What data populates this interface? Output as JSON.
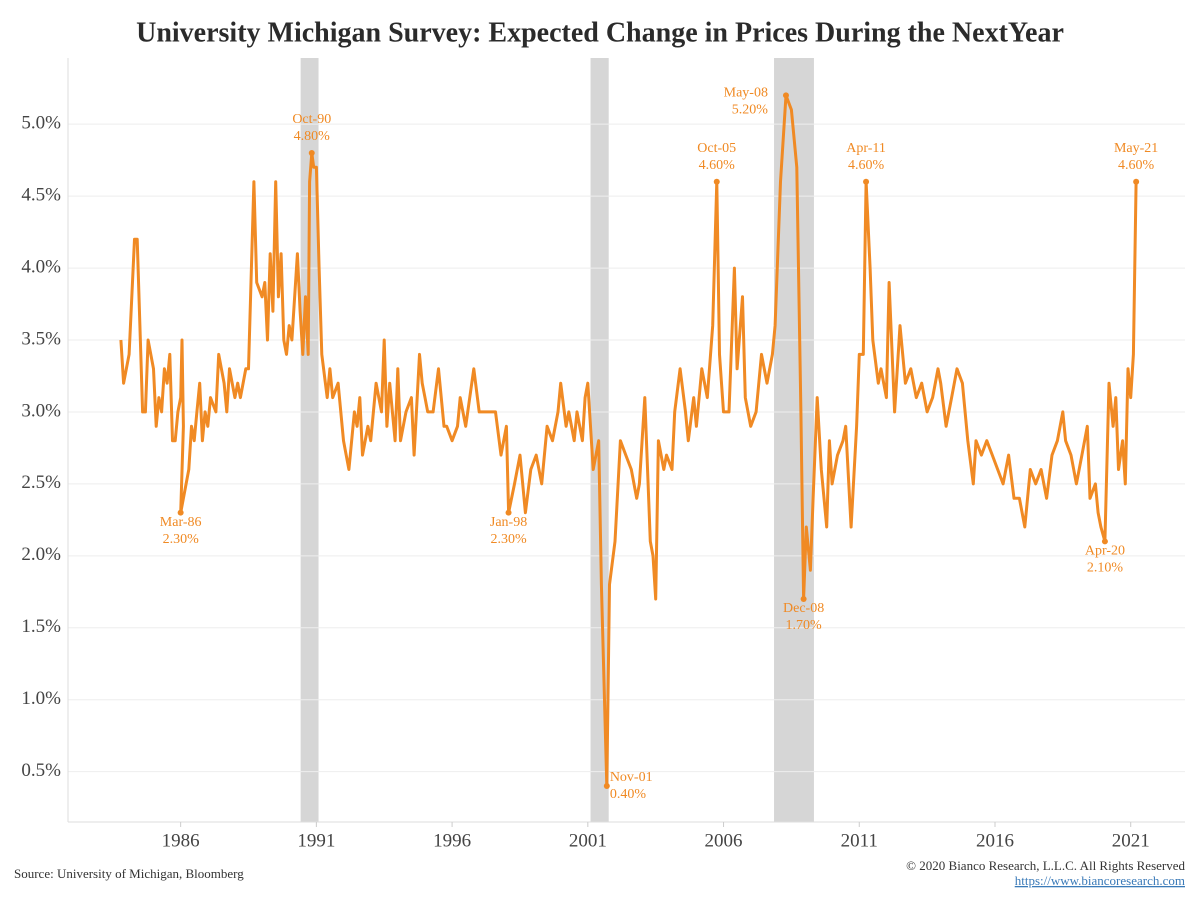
{
  "chart_data": {
    "type": "line",
    "title": "University Michigan Survey: Expected Change in Prices During the NextYear",
    "source": "Source: University of Michigan, Bloomberg",
    "copyright": "© 2020 Bianco Research, L.L.C. All Rights Reserved",
    "url": "https://www.biancoresearch.com",
    "color": "#f08a24",
    "shade_color": "#d6d6d6",
    "grid": true,
    "xlim": [
      1981.85,
      2023
    ],
    "xticks": [
      1986,
      1991,
      1996,
      2001,
      2006,
      2011,
      2016,
      2021
    ],
    "ylim": [
      0.15,
      5.46
    ],
    "yticks": [
      {
        "value": 0.5,
        "label": "0.5%"
      },
      {
        "value": 1,
        "label": "1.0%"
      },
      {
        "value": 1.5,
        "label": "1.5%"
      },
      {
        "value": 2,
        "label": "2.0%"
      },
      {
        "value": 2.5,
        "label": "2.5%"
      },
      {
        "value": 3,
        "label": "3.0%"
      },
      {
        "value": 3.5,
        "label": "3.5%"
      },
      {
        "value": 4,
        "label": "4.0%"
      },
      {
        "value": 4.5,
        "label": "4.5%"
      },
      {
        "value": 5,
        "label": "5.0%"
      }
    ],
    "shaded_periods": [
      [
        1990.42,
        1991.08
      ],
      [
        2001.1,
        2001.77
      ],
      [
        2007.86,
        2009.33
      ]
    ],
    "x": [
      1983.8,
      1983.9,
      1984.1,
      1984.3,
      1984.4,
      1984.6,
      1984.7,
      1984.8,
      1985.0,
      1985.1,
      1985.2,
      1985.3,
      1985.4,
      1985.5,
      1985.6,
      1985.7,
      1985.8,
      1985.9,
      1986.0,
      1986.05,
      1986.1,
      1986.0,
      1986.3,
      1986.4,
      1986.5,
      1986.6,
      1986.7,
      1986.8,
      1986.9,
      1987.0,
      1987.1,
      1987.3,
      1987.4,
      1987.6,
      1987.7,
      1987.8,
      1988.0,
      1988.1,
      1988.2,
      1988.4,
      1988.5,
      1988.7,
      1988.8,
      1989.0,
      1989.1,
      1989.2,
      1989.3,
      1989.4,
      1989.5,
      1989.6,
      1989.7,
      1989.8,
      1989.9,
      1990.0,
      1990.1,
      1990.3,
      1990.4,
      1990.5,
      1990.6,
      1990.7,
      1990.75,
      1990.83,
      1990.9,
      1991.0,
      1991.1,
      1991.2,
      1991.4,
      1991.5,
      1991.6,
      1991.8,
      1992.0,
      1992.1,
      1992.2,
      1992.4,
      1992.5,
      1992.6,
      1992.7,
      1992.9,
      1993.0,
      1993.2,
      1993.4,
      1993.5,
      1993.6,
      1993.7,
      1993.9,
      1994.0,
      1994.1,
      1994.3,
      1994.5,
      1994.6,
      1994.8,
      1994.9,
      1995.0,
      1995.1,
      1995.3,
      1995.5,
      1995.7,
      1995.8,
      1996.0,
      1996.2,
      1996.3,
      1996.5,
      1996.8,
      1997.0,
      1997.3,
      1997.6,
      1997.8,
      1998.0,
      1998.08,
      1998.3,
      1998.5,
      1998.7,
      1998.9,
      1999.1,
      1999.3,
      1999.5,
      1999.7,
      1999.9,
      2000.0,
      2000.2,
      2000.3,
      2000.5,
      2000.6,
      2000.8,
      2000.9,
      2001.0,
      2001.2,
      2001.4,
      2001.5,
      2001.7,
      2001.8,
      2002.0,
      2002.2,
      2002.4,
      2002.6,
      2002.8,
      2002.9,
      2003.1,
      2003.3,
      2003.4,
      2003.5,
      2003.6,
      2003.8,
      2003.9,
      2004.1,
      2004.2,
      2004.4,
      2004.6,
      2004.7,
      2004.9,
      2005.0,
      2005.2,
      2005.4,
      2005.6,
      2005.75,
      2005.85,
      2006.0,
      2006.2,
      2006.4,
      2006.5,
      2006.7,
      2006.8,
      2007.0,
      2007.2,
      2007.4,
      2007.6,
      2007.8,
      2007.9,
      2008.1,
      2008.3,
      2008.5,
      2008.7,
      2008.85,
      2008.95,
      2009.05,
      2009.2,
      2009.3,
      2009.45,
      2009.6,
      2009.8,
      2009.9,
      2010.0,
      2010.2,
      2010.4,
      2010.5,
      2010.7,
      2010.9,
      2011.0,
      2011.15,
      2011.25,
      2011.4,
      2011.5,
      2011.7,
      2011.8,
      2012.0,
      2012.1,
      2012.3,
      2012.5,
      2012.7,
      2012.9,
      2013.1,
      2013.3,
      2013.5,
      2013.7,
      2013.9,
      2014.0,
      2014.2,
      2014.4,
      2014.6,
      2014.8,
      2015.0,
      2015.2,
      2015.3,
      2015.5,
      2015.7,
      2015.9,
      2016.1,
      2016.3,
      2016.5,
      2016.7,
      2016.9,
      2017.1,
      2017.3,
      2017.5,
      2017.7,
      2017.9,
      2018.1,
      2018.3,
      2018.5,
      2018.6,
      2018.8,
      2019.0,
      2019.2,
      2019.4,
      2019.5,
      2019.7,
      2019.8,
      2019.9,
      2020.05,
      2020.2,
      2020.35,
      2020.45,
      2020.55,
      2020.7,
      2020.8,
      2020.9,
      2021.0,
      2021.1,
      2021.2
    ],
    "values": [
      3.5,
      3.2,
      3.4,
      4.2,
      4.2,
      3.0,
      3.0,
      3.5,
      3.3,
      2.9,
      3.1,
      3.0,
      3.3,
      3.2,
      3.4,
      2.8,
      2.8,
      3.0,
      3.1,
      3.5,
      2.9,
      2.3,
      2.6,
      2.9,
      2.8,
      3.0,
      3.2,
      2.8,
      3.0,
      2.9,
      3.1,
      3.0,
      3.4,
      3.2,
      3.0,
      3.3,
      3.1,
      3.2,
      3.1,
      3.3,
      3.3,
      4.6,
      3.9,
      3.8,
      3.9,
      3.5,
      4.1,
      3.7,
      4.6,
      3.8,
      4.1,
      3.5,
      3.4,
      3.6,
      3.5,
      4.1,
      3.7,
      3.4,
      3.8,
      3.4,
      4.6,
      4.8,
      4.7,
      4.7,
      4.0,
      3.4,
      3.1,
      3.3,
      3.1,
      3.2,
      2.8,
      2.7,
      2.6,
      3.0,
      2.9,
      3.1,
      2.7,
      2.9,
      2.8,
      3.2,
      3.0,
      3.5,
      2.9,
      3.2,
      2.8,
      3.3,
      2.8,
      3.0,
      3.1,
      2.7,
      3.4,
      3.2,
      3.1,
      3.0,
      3.0,
      3.3,
      2.9,
      2.9,
      2.8,
      2.9,
      3.1,
      2.9,
      3.3,
      3.0,
      3.0,
      3.0,
      2.7,
      2.9,
      2.3,
      2.5,
      2.7,
      2.3,
      2.6,
      2.7,
      2.5,
      2.9,
      2.8,
      3.0,
      3.2,
      2.9,
      3.0,
      2.8,
      3.0,
      2.8,
      3.1,
      3.2,
      2.6,
      2.8,
      1.8,
      0.4,
      1.8,
      2.1,
      2.8,
      2.7,
      2.6,
      2.4,
      2.5,
      3.1,
      2.1,
      2.0,
      1.7,
      2.8,
      2.6,
      2.7,
      2.6,
      3.0,
      3.3,
      3.0,
      2.8,
      3.1,
      2.9,
      3.3,
      3.1,
      3.6,
      4.6,
      3.4,
      3.0,
      3.0,
      4.0,
      3.3,
      3.8,
      3.1,
      2.9,
      3.0,
      3.4,
      3.2,
      3.4,
      3.6,
      4.6,
      5.2,
      5.1,
      4.7,
      3.0,
      1.7,
      2.2,
      1.9,
      2.4,
      3.1,
      2.6,
      2.2,
      2.8,
      2.5,
      2.7,
      2.8,
      2.9,
      2.2,
      2.9,
      3.4,
      3.4,
      4.6,
      4.0,
      3.5,
      3.2,
      3.3,
      3.1,
      3.9,
      3.0,
      3.6,
      3.2,
      3.3,
      3.1,
      3.2,
      3.0,
      3.1,
      3.3,
      3.2,
      2.9,
      3.1,
      3.3,
      3.2,
      2.8,
      2.5,
      2.8,
      2.7,
      2.8,
      2.7,
      2.6,
      2.5,
      2.7,
      2.4,
      2.4,
      2.2,
      2.6,
      2.5,
      2.6,
      2.4,
      2.7,
      2.8,
      3.0,
      2.8,
      2.7,
      2.5,
      2.7,
      2.9,
      2.4,
      2.5,
      2.3,
      2.2,
      2.1,
      3.2,
      2.9,
      3.1,
      2.6,
      2.8,
      2.5,
      3.3,
      3.1,
      3.4,
      4.6
    ],
    "annotations": [
      {
        "label": "Mar-86",
        "value_label": "2.30%",
        "x": 1986.0,
        "y": 2.3,
        "position": "below"
      },
      {
        "label": "Oct-90",
        "value_label": "4.80%",
        "x": 1990.83,
        "y": 4.8,
        "position": "above"
      },
      {
        "label": "Jan-98",
        "value_label": "2.30%",
        "x": 1998.08,
        "y": 2.3,
        "position": "below"
      },
      {
        "label": "Nov-01",
        "value_label": "0.40%",
        "x": 2001.7,
        "y": 0.4,
        "position": "right"
      },
      {
        "label": "Oct-05",
        "value_label": "4.60%",
        "x": 2005.75,
        "y": 4.6,
        "position": "above"
      },
      {
        "label": "May-08",
        "value_label": "5.20%",
        "x": 2008.3,
        "y": 5.2,
        "position": "left"
      },
      {
        "label": "Dec-08",
        "value_label": "1.70%",
        "x": 2008.95,
        "y": 1.7,
        "position": "below"
      },
      {
        "label": "Apr-11",
        "value_label": "4.60%",
        "x": 2011.25,
        "y": 4.6,
        "position": "above"
      },
      {
        "label": "Apr-20",
        "value_label": "2.10%",
        "x": 2020.05,
        "y": 2.1,
        "position": "below"
      },
      {
        "label": "May-21",
        "value_label": "4.60%",
        "x": 2021.2,
        "y": 4.6,
        "position": "above"
      }
    ]
  }
}
